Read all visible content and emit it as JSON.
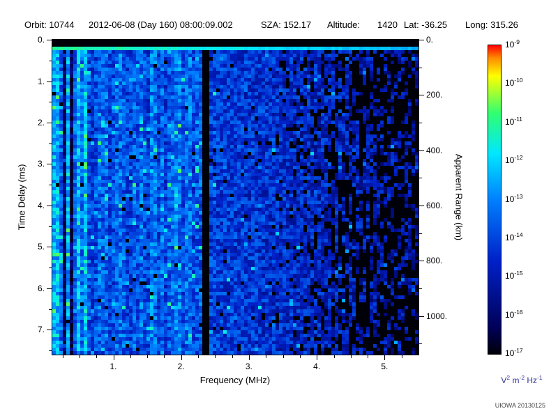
{
  "header": {
    "orbit": "Orbit: 10744",
    "datetime": "2012-06-08 (Day 160) 08:00:09.002",
    "sza": "SZA: 152.17",
    "altitude_label": "Altitude:",
    "altitude_value": "1420",
    "lat": "Lat: -36.25",
    "long": "Long: 315.26"
  },
  "credit": "UIOWA 20130125",
  "chart_data": {
    "type": "heatmap",
    "title": "",
    "xlabel": "Frequency (MHz)",
    "ylabel": "Time Delay (ms)",
    "y2label": "Apparent Range (km)",
    "x_range": [
      0.1,
      5.5
    ],
    "x_major_tick_values": [
      1,
      2,
      3,
      4,
      5
    ],
    "x_major_tick_labels": [
      "1.",
      "2.",
      "3.",
      "4.",
      "5."
    ],
    "x_minor_tick_step": 0.25,
    "y_range": [
      0,
      7.6
    ],
    "y_major_tick_values": [
      0,
      1,
      2,
      3,
      4,
      5,
      6,
      7
    ],
    "y_major_tick_labels": [
      "0.",
      "1.",
      "2.",
      "3.",
      "4.",
      "5.",
      "6.",
      "7."
    ],
    "y_minor_tick_step": 0.5,
    "y2_range": [
      0,
      1140
    ],
    "y2_major_tick_values": [
      0,
      200,
      400,
      600,
      800,
      1000
    ],
    "y2_major_tick_labels": [
      "0.",
      "200.",
      "400.",
      "600.",
      "800.",
      "1000."
    ],
    "y2_minor_tick_step": 100,
    "plot_background": "#000000",
    "colorbar": {
      "unit": "V^2 m^-2 Hz^-1",
      "tick_base": "10",
      "tick_exponents": [
        -9,
        -10,
        -11,
        -12,
        -13,
        -14,
        -15,
        -16,
        -17
      ],
      "scale_min": "1e-17",
      "scale_max": "1e-9",
      "stops": [
        {
          "p": 0.0,
          "c": "#000008"
        },
        {
          "p": 0.08,
          "c": "#000055"
        },
        {
          "p": 0.3,
          "c": "#0020c8"
        },
        {
          "p": 0.5,
          "c": "#0080ff"
        },
        {
          "p": 0.65,
          "c": "#00e8ff"
        },
        {
          "p": 0.78,
          "c": "#30ff70"
        },
        {
          "p": 0.9,
          "c": "#ffff00"
        },
        {
          "p": 0.96,
          "c": "#ff8800"
        },
        {
          "p": 1.0,
          "c": "#ff0000"
        }
      ]
    },
    "features": {
      "seed": 1337,
      "transmit_pulse_delay_ms": 0.22,
      "top_blank_band_ms": 0.17,
      "blanked_band_mhz": [
        2.3,
        2.42
      ],
      "bright_streaks_mhz": [
        0.13,
        0.18,
        0.5
      ],
      "dark_lines_mhz": [
        0.28,
        0.38
      ],
      "noise_bright_band_mhz": [
        0.1,
        2.3
      ],
      "weak_signal_above_mhz": 4.3
    }
  }
}
